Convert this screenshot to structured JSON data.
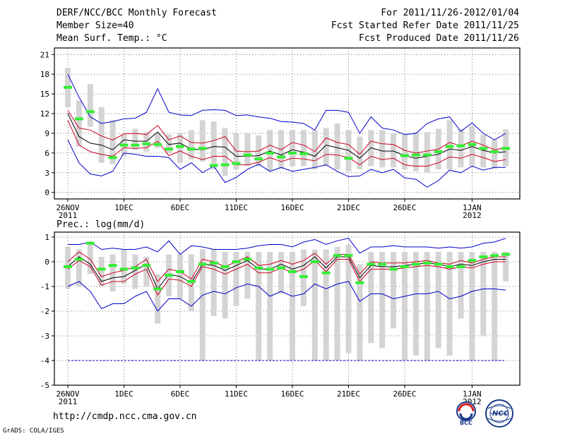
{
  "header": {
    "title": "DERF/NCC/BCC Monthly Forecast",
    "member_size": "Member Size=40",
    "variable": "Mean Surf. Temp.: °C",
    "forecast_period": "For 2011/11/26-2012/01/04",
    "started_refer": "Fcst Started Refer Date 2011/11/25",
    "produced": "Fcst Produced Date 2011/11/26"
  },
  "footer": {
    "url": "http://cmdp.ncc.cma.gov.cn",
    "grads": "GrADS: COLA/IGES",
    "logo_bcc": "BCC",
    "logo_ncc": "NCC"
  },
  "colors": {
    "max": "#0000cc",
    "min": "#0000cc",
    "band": "#cc0022",
    "mean": "#000000",
    "obs": "#33ee33",
    "box": "#d4d4d4",
    "zero_line": "#0000cc"
  },
  "chart_data": [
    {
      "type": "box-line",
      "name": "temperature",
      "title": "Mean Surf. Temp.: °C",
      "ylim": [
        -1,
        22
      ],
      "yticks": [
        0,
        3,
        6,
        9,
        12,
        15,
        18,
        21
      ],
      "xlim": [
        0,
        40
      ],
      "xticks": [
        {
          "x": 0,
          "label": "26NOV",
          "label2": "2011"
        },
        {
          "x": 5,
          "label": "1DEC"
        },
        {
          "x": 10,
          "label": "6DEC"
        },
        {
          "x": 15,
          "label": "11DEC"
        },
        {
          "x": 20,
          "label": "16DEC"
        },
        {
          "x": 25,
          "label": "21DEC"
        },
        {
          "x": 30,
          "label": "26DEC"
        },
        {
          "x": 36,
          "label": "1JAN",
          "label2": "2012"
        }
      ],
      "series": [
        {
          "name": "max",
          "values": [
            18.0,
            14.5,
            11.5,
            10.5,
            10.8,
            11.2,
            11.3,
            12.2,
            15.8,
            12.2,
            11.8,
            11.7,
            12.5,
            12.6,
            12.5,
            11.7,
            11.8,
            11.5,
            11.3,
            10.8,
            10.7,
            10.5,
            9.5,
            12.5,
            12.5,
            12.2,
            9.0,
            11.5,
            9.8,
            9.5,
            8.8,
            9.0,
            10.5,
            11.2,
            11.5,
            9.3,
            10.6,
            9.0,
            8.0,
            9.0
          ]
        },
        {
          "name": "band_upper",
          "values": [
            12.5,
            9.8,
            9.5,
            8.6,
            8.0,
            8.9,
            9.0,
            8.8,
            10.2,
            8.0,
            8.6,
            7.6,
            7.5,
            7.9,
            8.5,
            6.3,
            6.2,
            6.3,
            7.2,
            6.5,
            7.6,
            7.2,
            6.2,
            8.3,
            7.6,
            7.3,
            5.8,
            7.8,
            7.4,
            7.3,
            6.4,
            6.0,
            6.3,
            6.6,
            7.6,
            7.1,
            7.8,
            7.2,
            6.5,
            6.8
          ]
        },
        {
          "name": "mean",
          "values": [
            12.0,
            8.5,
            7.5,
            7.2,
            6.5,
            8.0,
            7.8,
            7.8,
            9.2,
            7.3,
            7.5,
            6.6,
            6.5,
            7.0,
            6.9,
            5.5,
            5.5,
            5.6,
            6.3,
            5.7,
            6.5,
            6.1,
            5.5,
            7.2,
            6.8,
            6.4,
            5.2,
            6.8,
            6.3,
            6.3,
            5.6,
            5.2,
            5.5,
            5.8,
            6.6,
            6.4,
            7.0,
            6.4,
            6.0,
            6.2
          ]
        },
        {
          "name": "band_lower",
          "values": [
            11.0,
            7.2,
            6.2,
            5.8,
            5.5,
            6.8,
            6.7,
            6.8,
            7.8,
            5.6,
            6.3,
            5.5,
            5.0,
            5.5,
            5.5,
            4.2,
            4.2,
            4.6,
            5.3,
            4.7,
            5.2,
            5.1,
            4.8,
            5.8,
            5.7,
            5.3,
            4.2,
            5.5,
            5.0,
            5.2,
            4.2,
            4.0,
            4.0,
            4.5,
            5.4,
            5.2,
            5.8,
            5.3,
            4.7,
            5.0
          ]
        },
        {
          "name": "min",
          "values": [
            8.0,
            4.5,
            2.8,
            2.5,
            3.2,
            6.0,
            5.8,
            5.5,
            5.5,
            5.3,
            3.5,
            4.5,
            3.0,
            4.0,
            1.5,
            2.3,
            3.5,
            4.3,
            3.2,
            3.8,
            3.2,
            3.5,
            3.8,
            4.2,
            3.2,
            2.4,
            2.5,
            3.5,
            3.0,
            3.5,
            2.2,
            2.0,
            0.8,
            1.8,
            3.4,
            3.0,
            4.0,
            3.4,
            3.8,
            3.8
          ]
        },
        {
          "name": "observed",
          "values": [
            16.0,
            11.2,
            12.3,
            null,
            5.3,
            7.2,
            7.2,
            7.4,
            7.3,
            6.6,
            7.0,
            6.6,
            6.7,
            4.1,
            4.2,
            4.4,
            5.7,
            5.1,
            6.0,
            5.4,
            6.0,
            5.9,
            null,
            null,
            null,
            5.2,
            null,
            null,
            null,
            null,
            5.6,
            5.7,
            5.7,
            6.2,
            7.0,
            7.1,
            7.3,
            6.7,
            6.2,
            6.7
          ]
        }
      ],
      "boxes": {
        "low": [
          13.0,
          7.0,
          10.0,
          4.5,
          4.3,
          5.5,
          6.5,
          6.2,
          6.8,
          6.0,
          4.5,
          5.0,
          4.7,
          3.5,
          2.5,
          3.5,
          4.0,
          4.0,
          3.3,
          3.6,
          4.0,
          4.0,
          3.5,
          4.0,
          3.5,
          3.2,
          3.5,
          4.0,
          3.8,
          3.8,
          3.5,
          3.2,
          3.0,
          3.5,
          3.5,
          3.8,
          4.0,
          3.8,
          3.6,
          4.0
        ],
        "high": [
          19.0,
          14.0,
          16.5,
          13.0,
          11.0,
          8.8,
          9.7,
          9.2,
          9.0,
          8.8,
          9.0,
          9.5,
          11.0,
          10.8,
          9.8,
          9.0,
          9.0,
          8.7,
          9.5,
          9.5,
          9.5,
          9.5,
          9.5,
          9.8,
          10.5,
          9.5,
          8.5,
          9.5,
          9.5,
          9.0,
          8.8,
          9.2,
          9.2,
          9.7,
          11.0,
          9.6,
          10.2,
          8.8,
          8.0,
          9.6
        ]
      }
    },
    {
      "type": "box-line",
      "name": "precipitation",
      "title": "Prec.: log(mm/d)",
      "ylim": [
        -5,
        1.2
      ],
      "yticks": [
        -5,
        -4,
        -3,
        -2,
        -1,
        0,
        1
      ],
      "xlim": [
        0,
        40
      ],
      "xticks": [
        {
          "x": 0,
          "label": "26NOV",
          "label2": "2011"
        },
        {
          "x": 5,
          "label": "1DEC"
        },
        {
          "x": 10,
          "label": "6DEC"
        },
        {
          "x": 15,
          "label": "11DEC"
        },
        {
          "x": 20,
          "label": "16DEC"
        },
        {
          "x": 25,
          "label": "21DEC"
        },
        {
          "x": 30,
          "label": "26DEC"
        },
        {
          "x": 36,
          "label": "1JAN",
          "label2": "2012"
        }
      ],
      "series": [
        {
          "name": "max",
          "values": [
            0.7,
            0.7,
            0.8,
            0.5,
            0.55,
            0.5,
            0.5,
            0.6,
            0.4,
            0.85,
            0.3,
            0.65,
            0.6,
            0.5,
            0.5,
            0.5,
            0.55,
            0.65,
            0.7,
            0.7,
            0.6,
            0.8,
            0.9,
            0.7,
            0.85,
            0.95,
            0.35,
            0.6,
            0.6,
            0.65,
            0.6,
            0.6,
            0.6,
            0.55,
            0.6,
            0.55,
            0.6,
            0.75,
            0.8,
            0.95
          ]
        },
        {
          "name": "band_upper",
          "values": [
            0.0,
            0.4,
            0.1,
            -0.6,
            -0.45,
            -0.35,
            -0.2,
            0.1,
            -0.8,
            -0.3,
            -0.4,
            -0.7,
            0.1,
            0.0,
            -0.2,
            0.0,
            0.2,
            -0.15,
            -0.1,
            0.05,
            -0.1,
            0.05,
            0.35,
            -0.1,
            0.3,
            0.3,
            -0.5,
            0.0,
            -0.05,
            -0.05,
            -0.05,
            0.0,
            0.05,
            -0.05,
            -0.1,
            0.05,
            -0.05,
            0.1,
            0.2,
            0.2
          ]
        },
        {
          "name": "mean",
          "values": [
            -0.2,
            0.2,
            -0.1,
            -0.8,
            -0.65,
            -0.6,
            -0.35,
            -0.1,
            -1.1,
            -0.5,
            -0.6,
            -0.85,
            -0.1,
            -0.15,
            -0.35,
            -0.15,
            0.05,
            -0.3,
            -0.3,
            -0.1,
            -0.3,
            -0.15,
            0.2,
            -0.25,
            0.2,
            0.2,
            -0.65,
            -0.15,
            -0.2,
            -0.2,
            -0.15,
            -0.1,
            -0.05,
            -0.1,
            -0.2,
            -0.1,
            -0.15,
            0.0,
            0.1,
            0.1
          ]
        },
        {
          "name": "band_lower",
          "values": [
            -0.3,
            0.05,
            -0.2,
            -0.95,
            -0.8,
            -0.8,
            -0.5,
            -0.3,
            -1.35,
            -0.7,
            -0.75,
            -1.0,
            -0.2,
            -0.3,
            -0.5,
            -0.3,
            -0.1,
            -0.45,
            -0.45,
            -0.25,
            -0.45,
            -0.3,
            0.05,
            -0.4,
            0.1,
            0.1,
            -0.8,
            -0.3,
            -0.3,
            -0.3,
            -0.25,
            -0.2,
            -0.15,
            -0.2,
            -0.3,
            -0.2,
            -0.25,
            -0.1,
            0.0,
            0.0
          ]
        },
        {
          "name": "min",
          "values": [
            -1.0,
            -0.8,
            -1.2,
            -1.9,
            -1.7,
            -1.7,
            -1.4,
            -1.2,
            -2.0,
            -1.5,
            -1.5,
            -1.8,
            -1.35,
            -1.2,
            -1.3,
            -1.05,
            -0.9,
            -1.0,
            -1.4,
            -1.2,
            -1.4,
            -1.3,
            -0.9,
            -1.1,
            -0.9,
            -0.8,
            -1.6,
            -1.3,
            -1.3,
            -1.5,
            -1.4,
            -1.3,
            -1.3,
            -1.2,
            -1.5,
            -1.4,
            -1.2,
            -1.1,
            -1.1,
            -1.15
          ]
        },
        {
          "name": "floor",
          "values": [
            -4,
            -4,
            -4,
            -4,
            -4,
            -4,
            -4,
            -4,
            -4,
            -4,
            -4,
            -4,
            -4,
            -4,
            -4,
            -4,
            -4,
            -4,
            -4,
            -4,
            -4,
            -4,
            -4,
            -4,
            -4,
            -4,
            -4,
            -4,
            -4,
            -4,
            -4,
            -4,
            -4,
            -4,
            -4,
            -4,
            -4,
            -4,
            -4,
            -4
          ]
        },
        {
          "name": "observed",
          "values": [
            -0.2,
            0.1,
            0.75,
            -0.3,
            -0.15,
            -0.3,
            -0.25,
            -0.15,
            -1.1,
            -0.55,
            -0.4,
            -0.8,
            -0.1,
            -0.05,
            -0.2,
            0.0,
            0.1,
            -0.25,
            -0.3,
            -0.25,
            -0.4,
            -0.6,
            0.0,
            -0.45,
            0.25,
            0.25,
            -0.85,
            -0.1,
            -0.1,
            -0.3,
            -0.2,
            -0.1,
            -0.05,
            -0.1,
            -0.2,
            -0.2,
            0.05,
            0.2,
            0.25,
            0.3
          ]
        }
      ],
      "boxes": {
        "low": [
          -1.1,
          -1.0,
          -0.5,
          -1.0,
          -1.2,
          -0.9,
          -1.1,
          -1.0,
          -2.5,
          -1.4,
          -1.5,
          -2.0,
          -4.0,
          -2.2,
          -2.3,
          -1.8,
          -1.5,
          -4.0,
          -4.0,
          -1.3,
          -4.0,
          -1.8,
          -4.0,
          -4.0,
          -4.0,
          -3.7,
          -4.0,
          -3.3,
          -3.5,
          -2.7,
          -4.0,
          -3.8,
          -4.0,
          -3.5,
          -3.8,
          -2.3,
          -4.0,
          -3.0,
          -4.0,
          -0.8
        ],
        "high": [
          0.6,
          0.5,
          0.8,
          0.2,
          0.3,
          0.5,
          0.3,
          0.2,
          -0.5,
          0.3,
          0.3,
          0.3,
          0.5,
          0.5,
          0.4,
          0.4,
          0.4,
          0.4,
          0.4,
          0.4,
          0.4,
          0.5,
          0.5,
          0.5,
          0.6,
          0.7,
          -0.1,
          0.4,
          0.4,
          0.4,
          0.4,
          0.4,
          0.4,
          0.4,
          0.4,
          0.4,
          0.4,
          0.4,
          0.4,
          0.4
        ]
      }
    }
  ]
}
